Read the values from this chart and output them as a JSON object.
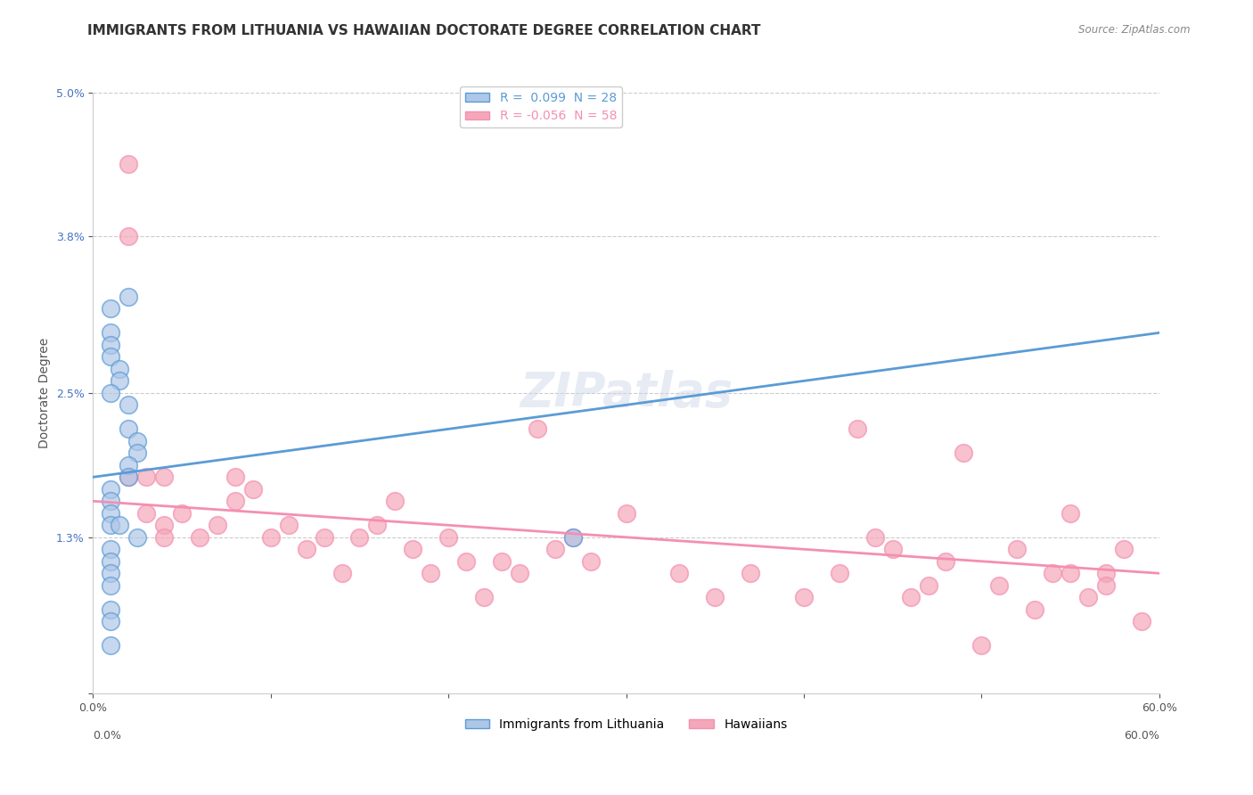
{
  "title": "IMMIGRANTS FROM LITHUANIA VS HAWAIIAN DOCTORATE DEGREE CORRELATION CHART",
  "source_text": "Source: ZipAtlas.com",
  "xlabel": "",
  "ylabel": "Doctorate Degree",
  "xlim": [
    0.0,
    0.6
  ],
  "ylim": [
    0.0,
    0.05
  ],
  "yticks": [
    0.0,
    0.013,
    0.025,
    0.038,
    0.05
  ],
  "ytick_labels": [
    "",
    "1.3%",
    "2.5%",
    "3.8%",
    "5.0%"
  ],
  "xticks": [
    0.0,
    0.1,
    0.2,
    0.3,
    0.4,
    0.5,
    0.6
  ],
  "xtick_labels": [
    "0.0%",
    "",
    "",
    "",
    "",
    "",
    "60.0%"
  ],
  "legend_entries": [
    {
      "label": "R =  0.099  N = 28",
      "color": "#aec6e8"
    },
    {
      "label": "R = -0.056  N = 58",
      "color": "#f4a7b9"
    }
  ],
  "blue_scatter_x": [
    0.02,
    0.01,
    0.01,
    0.01,
    0.01,
    0.015,
    0.015,
    0.01,
    0.02,
    0.02,
    0.025,
    0.025,
    0.02,
    0.02,
    0.01,
    0.01,
    0.01,
    0.01,
    0.015,
    0.025,
    0.27,
    0.01,
    0.01,
    0.01,
    0.01,
    0.01,
    0.01,
    0.01
  ],
  "blue_scatter_y": [
    0.033,
    0.032,
    0.03,
    0.029,
    0.028,
    0.027,
    0.026,
    0.025,
    0.024,
    0.022,
    0.021,
    0.02,
    0.019,
    0.018,
    0.017,
    0.016,
    0.015,
    0.014,
    0.014,
    0.013,
    0.013,
    0.012,
    0.011,
    0.01,
    0.009,
    0.007,
    0.006,
    0.004
  ],
  "pink_scatter_x": [
    0.02,
    0.02,
    0.02,
    0.03,
    0.03,
    0.04,
    0.04,
    0.04,
    0.05,
    0.06,
    0.07,
    0.08,
    0.08,
    0.09,
    0.1,
    0.11,
    0.12,
    0.13,
    0.14,
    0.15,
    0.16,
    0.17,
    0.18,
    0.19,
    0.2,
    0.21,
    0.22,
    0.23,
    0.24,
    0.25,
    0.26,
    0.27,
    0.28,
    0.3,
    0.33,
    0.35,
    0.37,
    0.4,
    0.43,
    0.45,
    0.47,
    0.49,
    0.5,
    0.52,
    0.54,
    0.55,
    0.56,
    0.57,
    0.58,
    0.59,
    0.42,
    0.44,
    0.46,
    0.48,
    0.51,
    0.53,
    0.55,
    0.57
  ],
  "pink_scatter_y": [
    0.044,
    0.038,
    0.018,
    0.018,
    0.015,
    0.018,
    0.014,
    0.013,
    0.015,
    0.013,
    0.014,
    0.018,
    0.016,
    0.017,
    0.013,
    0.014,
    0.012,
    0.013,
    0.01,
    0.013,
    0.014,
    0.016,
    0.012,
    0.01,
    0.013,
    0.011,
    0.008,
    0.011,
    0.01,
    0.022,
    0.012,
    0.013,
    0.011,
    0.015,
    0.01,
    0.008,
    0.01,
    0.008,
    0.022,
    0.012,
    0.009,
    0.02,
    0.004,
    0.012,
    0.01,
    0.015,
    0.008,
    0.01,
    0.012,
    0.006,
    0.01,
    0.013,
    0.008,
    0.011,
    0.009,
    0.007,
    0.01,
    0.009
  ],
  "blue_line_x": [
    0.0,
    0.6
  ],
  "blue_line_y": [
    0.018,
    0.03
  ],
  "pink_line_x": [
    0.0,
    0.6
  ],
  "pink_line_y": [
    0.016,
    0.01
  ],
  "blue_color": "#5b9bd5",
  "pink_color": "#f48fb1",
  "blue_fill": "#aec6e8",
  "pink_fill": "#f4a7b9",
  "grid_color": "#cccccc",
  "watermark_text": "ZIPatlas",
  "background_color": "#ffffff",
  "title_fontsize": 11,
  "axis_label_fontsize": 10,
  "tick_fontsize": 9,
  "legend_fontsize": 10,
  "watermark_color": "#d0d8e8",
  "watermark_fontsize": 38
}
